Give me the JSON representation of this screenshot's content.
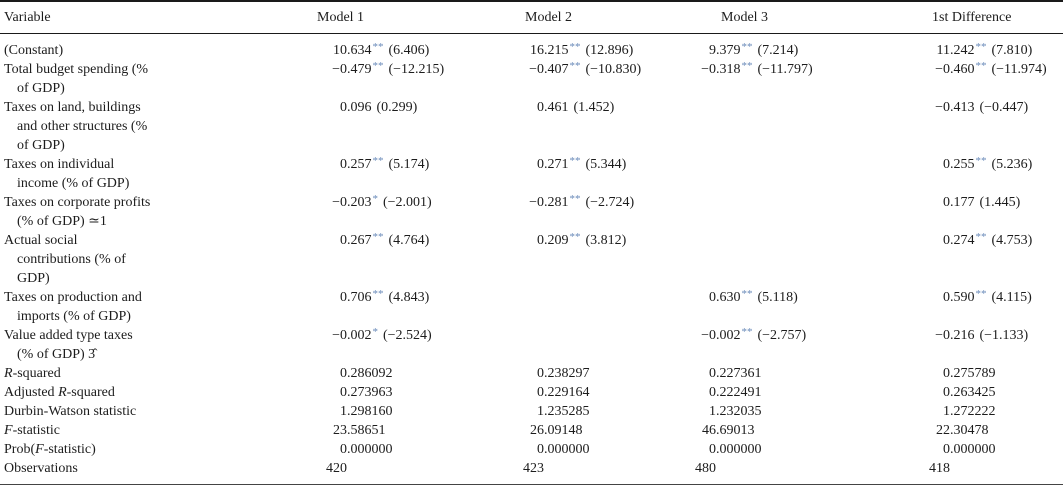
{
  "colors": {
    "significance_star": "#6688b8"
  },
  "table": {
    "columns": [
      "Variable",
      "Model 1",
      "Model 2",
      "Model 3",
      "1st Difference"
    ],
    "rows": [
      {
        "label": "(Constant)",
        "values": [
          "10.634** (6.406)",
          "16.215** (12.896)",
          "9.379** (7.214)",
          "11.242** (7.810)"
        ]
      },
      {
        "label": "Total budget spending (%\nof GDP)",
        "values": [
          "−0.479** (−12.215)",
          "−0.407** (−10.830)",
          "−0.318** (−11.797)",
          "−0.460** (−11.974)"
        ]
      },
      {
        "label": "Taxes on land, buildings\nand other structures (%\nof GDP)",
        "values": [
          "0.096 (0.299)",
          "0.461 (1.452)",
          "",
          "−0.413 (−0.447)"
        ]
      },
      {
        "label": "Taxes on individual\nincome (% of GDP)",
        "values": [
          "0.257** (5.174)",
          "0.271** (5.344)",
          "",
          "0.255** (5.236)"
        ]
      },
      {
        "label": "Taxes on corporate profits\n(% of GDP) ≃1",
        "values": [
          "−0.203* (−2.001)",
          "−0.281** (−2.724)",
          "",
          "0.177 (1.445)"
        ]
      },
      {
        "label": "Actual social\ncontributions (% of\nGDP)",
        "values": [
          "0.267** (4.764)",
          "0.209** (3.812)",
          "",
          "0.274** (4.753)"
        ]
      },
      {
        "label": "Taxes on production and\nimports (% of GDP)",
        "values": [
          "0.706** (4.843)",
          "",
          "0.630** (5.118)",
          "0.590** (4.115)"
        ]
      },
      {
        "label": "Value added type taxes\n(% of GDP) 3̂",
        "values": [
          "−0.002* (−2.524)",
          "",
          "−0.002** (−2.757)",
          "−0.216 (−1.133)"
        ]
      },
      {
        "label": "R-squared",
        "values": [
          "0.286092",
          "0.238297",
          "0.227361",
          "0.275789"
        ]
      },
      {
        "label": "Adjusted R-squared",
        "values": [
          "0.273963",
          "0.229164",
          "0.222491",
          "0.263425"
        ]
      },
      {
        "label": "Durbin-Watson statistic",
        "values": [
          "1.298160",
          "1.235285",
          "1.232035",
          "1.272222"
        ]
      },
      {
        "label": "F-statistic",
        "values": [
          "23.58651",
          "26.09148",
          "46.69013",
          "22.30478"
        ]
      },
      {
        "label": "Prob(F-statistic)",
        "values": [
          "0.000000",
          "0.000000",
          "0.000000",
          "0.000000"
        ]
      },
      {
        "label": "Observations",
        "values": [
          "420",
          "423",
          "480",
          "418"
        ]
      }
    ]
  }
}
